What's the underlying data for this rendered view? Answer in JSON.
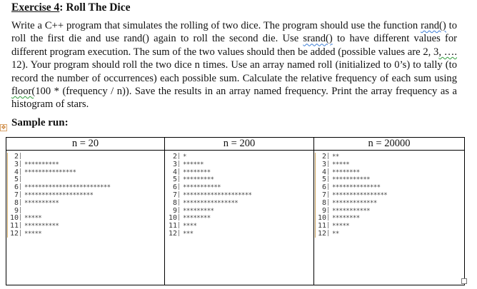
{
  "title": {
    "label": "Exercise 4",
    "rest": ": Roll The Dice"
  },
  "paragraph": {
    "p1": "Write a C++ program that simulates the rolling of two dice. The program should use the function ",
    "rand1": "rand()",
    "p2": " to roll the first die and use rand() again to roll the second die. Use ",
    "srand": "srand()",
    "p3": " to have different values for different program execution. The sum of the two values should then be added (possible values are 2, 3",
    "ellipsis": ", ….",
    "p4": " 12). Your program should roll the two dice n times. Use an array named roll (initialized to 0’s) to tally (to record the number of occurrences) each possible sum. Calculate the relative frequency of each sum using ",
    "floor": "floor(",
    "p5": "100 * (frequency / n)). Save the results in an array named frequency. Print the array frequency as a histogram of stars."
  },
  "sample_heading": "Sample run:",
  "table": {
    "headers": [
      "n = 20",
      "n = 200",
      "n = 20000"
    ],
    "labels": [
      "2",
      "3",
      "4",
      "5",
      "6",
      "7",
      "8",
      "9",
      "10",
      "11",
      "12"
    ],
    "runs": [
      {
        "n": 20,
        "counts": [
          0,
          10,
          15,
          0,
          25,
          20,
          10,
          0,
          5,
          10,
          5
        ]
      },
      {
        "n": 200,
        "counts": [
          1,
          6,
          8,
          9,
          11,
          20,
          16,
          9,
          8,
          4,
          3
        ]
      },
      {
        "n": 20000,
        "counts": [
          2,
          5,
          8,
          11,
          14,
          16,
          13,
          11,
          8,
          5,
          2
        ]
      }
    ]
  },
  "icons": {
    "move_handle": "move-arrows-icon",
    "resize_handle": "resize-square-icon"
  }
}
